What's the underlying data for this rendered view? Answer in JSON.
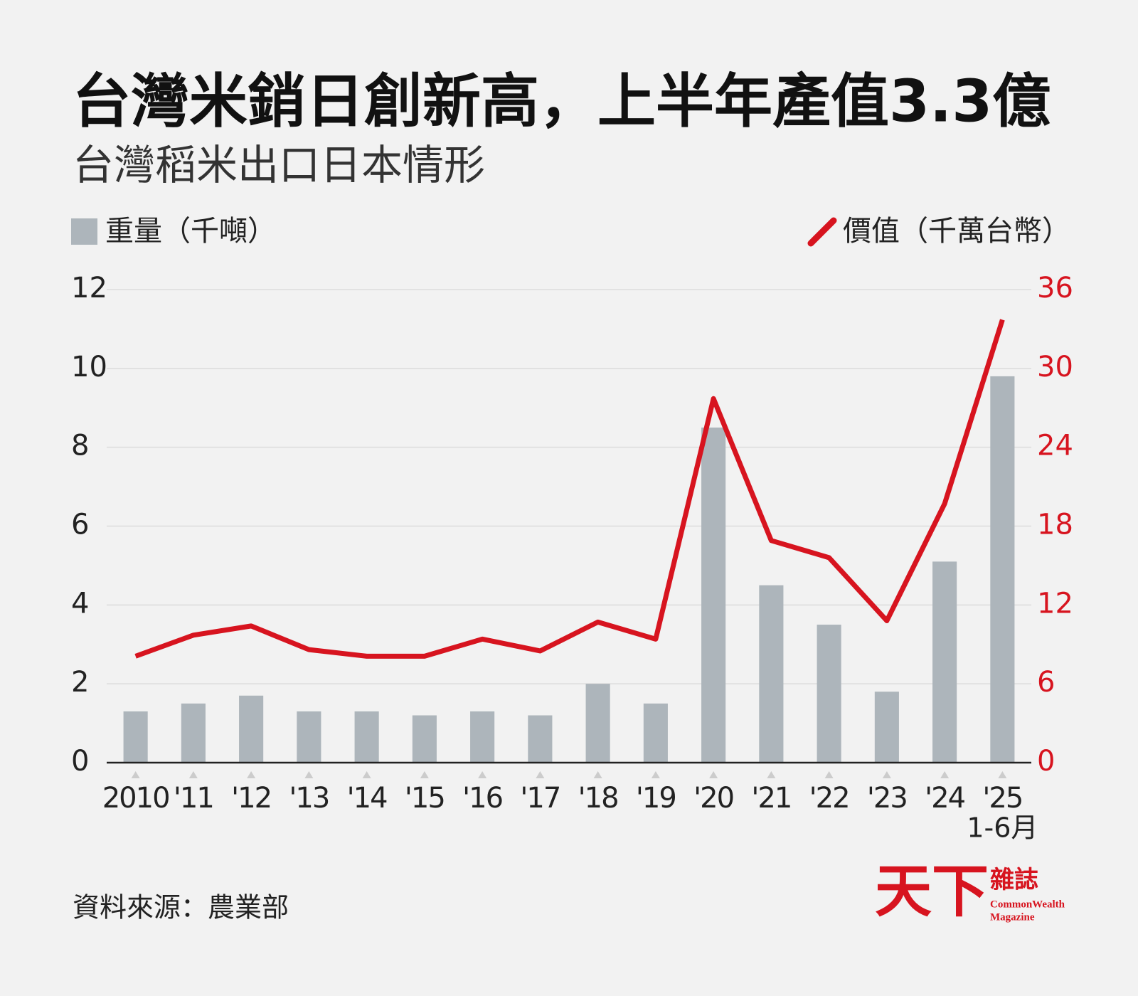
{
  "chart_data": {
    "type": "bar",
    "title": "台灣米銷日創新高，上半年產值3.3億",
    "subtitle": "台灣稻米出口日本情形",
    "categories": [
      "2010",
      "'11",
      "'12",
      "'13",
      "'14",
      "'15",
      "'16",
      "'17",
      "'18",
      "'19",
      "'20",
      "'21",
      "'22",
      "'23",
      "'24",
      "'25"
    ],
    "category_footnote": "1-6月",
    "series": [
      {
        "name": "重量（千噸）",
        "type": "bar",
        "color": "#adb5bb",
        "values": [
          1.3,
          1.5,
          1.7,
          1.3,
          1.3,
          1.2,
          1.3,
          1.2,
          2.0,
          1.5,
          8.5,
          4.5,
          3.5,
          1.8,
          5.1,
          9.8
        ]
      },
      {
        "name": "價值（千萬台幣）",
        "type": "line",
        "axis": "y2",
        "color": "#d7141f",
        "values": [
          8.1,
          9.7,
          10.4,
          8.6,
          8.1,
          8.1,
          9.4,
          8.5,
          10.7,
          9.4,
          27.7,
          16.9,
          15.6,
          10.8,
          19.7,
          33.7
        ]
      }
    ],
    "ylim": [
      0,
      12
    ],
    "yticks": [
      0,
      2,
      4,
      6,
      8,
      10,
      12
    ],
    "y2lim": [
      0,
      36
    ],
    "y2ticks": [
      0,
      6,
      12,
      18,
      24,
      30,
      36
    ],
    "grid": true,
    "source": "資料來源：農業部",
    "logo": {
      "mark": "天下",
      "name": "雜誌",
      "english_1": "CommonWealth",
      "english_2": "Magazine"
    }
  }
}
